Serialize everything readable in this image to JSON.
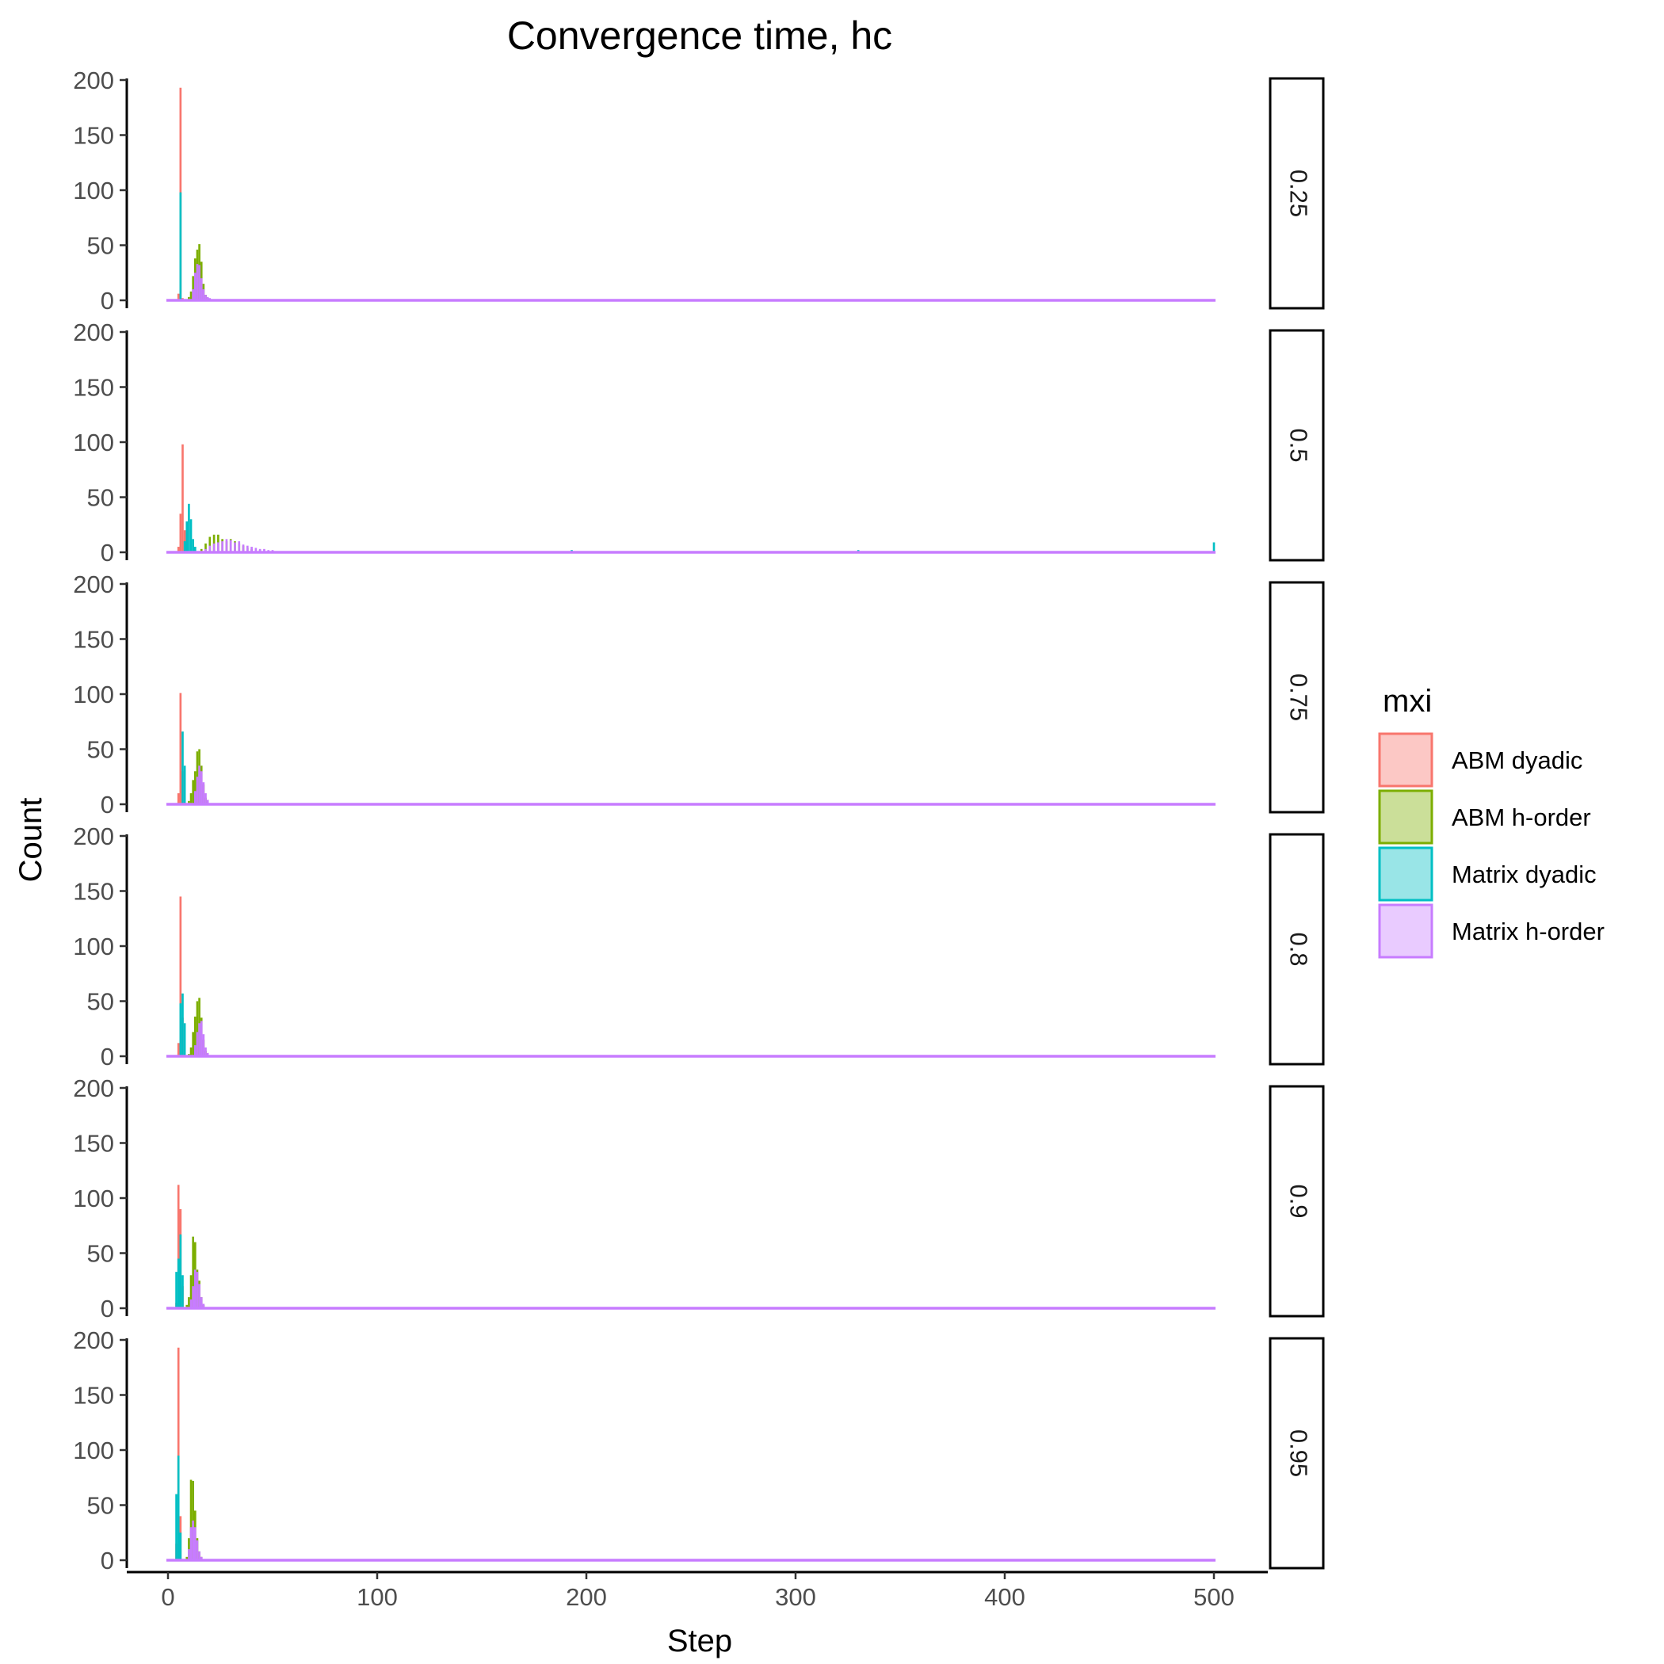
{
  "chart_data": {
    "type": "histogram",
    "title": "Convergence time, hc",
    "xlabel": "Step",
    "ylabel": "Count",
    "xlim": [
      0,
      500
    ],
    "ylim": [
      0,
      200
    ],
    "x_ticks": [
      "0",
      "100",
      "200",
      "300",
      "400",
      "500"
    ],
    "y_ticks": [
      "0",
      "50",
      "100",
      "150",
      "200"
    ],
    "grid": false,
    "legend": {
      "title": "mxi",
      "position": "right",
      "entries": [
        {
          "name": "ABM dyadic",
          "color": "#F8766D"
        },
        {
          "name": "ABM h-order",
          "color": "#7CAE00"
        },
        {
          "name": "Matrix dyadic",
          "color": "#00BFC4"
        },
        {
          "name": "Matrix h-order",
          "color": "#C77CFF"
        }
      ]
    },
    "facets": [
      {
        "label": "0.25",
        "series": [
          {
            "name": "ABM dyadic",
            "bins": [
              [
                5,
                6
              ],
              [
                6,
                193
              ],
              [
                7,
                2
              ]
            ]
          },
          {
            "name": "Matrix dyadic",
            "bins": [
              [
                6,
                98
              ]
            ]
          },
          {
            "name": "ABM h-order",
            "bins": [
              [
                10,
                3
              ],
              [
                11,
                8
              ],
              [
                12,
                22
              ],
              [
                13,
                38
              ],
              [
                14,
                46
              ],
              [
                15,
                51
              ],
              [
                16,
                35
              ],
              [
                17,
                15
              ],
              [
                18,
                5
              ],
              [
                19,
                2
              ]
            ]
          },
          {
            "name": "Matrix h-order",
            "bins": [
              [
                12,
                10
              ],
              [
                13,
                25
              ],
              [
                14,
                33
              ],
              [
                15,
                32
              ],
              [
                16,
                20
              ],
              [
                17,
                10
              ],
              [
                18,
                5
              ],
              [
                19,
                3
              ],
              [
                20,
                2
              ]
            ]
          }
        ]
      },
      {
        "label": "0.5",
        "series": [
          {
            "name": "ABM dyadic",
            "bins": [
              [
                5,
                5
              ],
              [
                6,
                35
              ],
              [
                7,
                98
              ],
              [
                8,
                20
              ],
              [
                9,
                5
              ]
            ]
          },
          {
            "name": "Matrix dyadic",
            "bins": [
              [
                8,
                10
              ],
              [
                9,
                28
              ],
              [
                10,
                44
              ],
              [
                11,
                30
              ],
              [
                12,
                12
              ],
              [
                13,
                5
              ],
              [
                193,
                2
              ],
              [
                330,
                2
              ],
              [
                500,
                9
              ]
            ]
          },
          {
            "name": "ABM h-order",
            "bins": [
              [
                16,
                3
              ],
              [
                18,
                8
              ],
              [
                20,
                14
              ],
              [
                22,
                16
              ],
              [
                24,
                16
              ],
              [
                26,
                12
              ],
              [
                28,
                10
              ],
              [
                30,
                12
              ],
              [
                32,
                10
              ],
              [
                34,
                8
              ],
              [
                36,
                6
              ],
              [
                38,
                4
              ],
              [
                40,
                3
              ],
              [
                44,
                2
              ],
              [
                48,
                1
              ]
            ]
          },
          {
            "name": "Matrix h-order",
            "bins": [
              [
                18,
                3
              ],
              [
                20,
                6
              ],
              [
                22,
                8
              ],
              [
                24,
                9
              ],
              [
                26,
                10
              ],
              [
                28,
                12
              ],
              [
                30,
                11
              ],
              [
                32,
                9
              ],
              [
                34,
                10
              ],
              [
                36,
                7
              ],
              [
                38,
                6
              ],
              [
                40,
                5
              ],
              [
                42,
                4
              ],
              [
                44,
                3
              ],
              [
                46,
                3
              ],
              [
                48,
                2
              ],
              [
                50,
                2
              ]
            ]
          }
        ]
      },
      {
        "label": "0.75",
        "series": [
          {
            "name": "ABM dyadic",
            "bins": [
              [
                5,
                10
              ],
              [
                6,
                101
              ],
              [
                7,
                30
              ]
            ]
          },
          {
            "name": "Matrix dyadic",
            "bins": [
              [
                7,
                66
              ],
              [
                8,
                35
              ]
            ]
          },
          {
            "name": "ABM h-order",
            "bins": [
              [
                10,
                3
              ],
              [
                11,
                10
              ],
              [
                12,
                22
              ],
              [
                13,
                30
              ],
              [
                14,
                48
              ],
              [
                15,
                50
              ],
              [
                16,
                35
              ],
              [
                17,
                18
              ],
              [
                18,
                6
              ],
              [
                19,
                2
              ]
            ]
          },
          {
            "name": "Matrix h-order",
            "bins": [
              [
                13,
                12
              ],
              [
                14,
                25
              ],
              [
                15,
                35
              ],
              [
                16,
                30
              ],
              [
                17,
                20
              ],
              [
                18,
                10
              ],
              [
                19,
                4
              ]
            ]
          }
        ]
      },
      {
        "label": "0.8",
        "series": [
          {
            "name": "ABM dyadic",
            "bins": [
              [
                5,
                12
              ],
              [
                6,
                145
              ],
              [
                7,
                35
              ]
            ]
          },
          {
            "name": "Matrix dyadic",
            "bins": [
              [
                6,
                48
              ],
              [
                7,
                57
              ],
              [
                8,
                30
              ]
            ]
          },
          {
            "name": "ABM h-order",
            "bins": [
              [
                10,
                2
              ],
              [
                11,
                8
              ],
              [
                12,
                22
              ],
              [
                13,
                36
              ],
              [
                14,
                50
              ],
              [
                15,
                53
              ],
              [
                16,
                35
              ],
              [
                17,
                15
              ],
              [
                18,
                5
              ]
            ]
          },
          {
            "name": "Matrix h-order",
            "bins": [
              [
                13,
                10
              ],
              [
                14,
                22
              ],
              [
                15,
                30
              ],
              [
                16,
                32
              ],
              [
                17,
                20
              ],
              [
                18,
                8
              ],
              [
                19,
                3
              ]
            ]
          }
        ]
      },
      {
        "label": "0.9",
        "series": [
          {
            "name": "ABM dyadic",
            "bins": [
              [
                4,
                5
              ],
              [
                5,
                112
              ],
              [
                6,
                90
              ],
              [
                7,
                20
              ]
            ]
          },
          {
            "name": "Matrix dyadic",
            "bins": [
              [
                4,
                33
              ],
              [
                5,
                45
              ],
              [
                6,
                67
              ],
              [
                7,
                30
              ]
            ]
          },
          {
            "name": "ABM h-order",
            "bins": [
              [
                9,
                3
              ],
              [
                10,
                10
              ],
              [
                11,
                30
              ],
              [
                12,
                65
              ],
              [
                13,
                60
              ],
              [
                14,
                35
              ],
              [
                15,
                25
              ],
              [
                16,
                10
              ],
              [
                17,
                3
              ]
            ]
          },
          {
            "name": "Matrix h-order",
            "bins": [
              [
                11,
                8
              ],
              [
                12,
                20
              ],
              [
                13,
                35
              ],
              [
                14,
                33
              ],
              [
                15,
                22
              ],
              [
                16,
                10
              ],
              [
                17,
                4
              ]
            ]
          }
        ]
      },
      {
        "label": "0.95",
        "series": [
          {
            "name": "ABM dyadic",
            "bins": [
              [
                4,
                15
              ],
              [
                5,
                193
              ],
              [
                6,
                40
              ]
            ]
          },
          {
            "name": "Matrix dyadic",
            "bins": [
              [
                4,
                60
              ],
              [
                5,
                95
              ],
              [
                6,
                25
              ]
            ]
          },
          {
            "name": "ABM h-order",
            "bins": [
              [
                9,
                3
              ],
              [
                10,
                20
              ],
              [
                11,
                73
              ],
              [
                12,
                72
              ],
              [
                13,
                45
              ],
              [
                14,
                20
              ],
              [
                15,
                8
              ],
              [
                16,
                3
              ]
            ]
          },
          {
            "name": "Matrix h-order",
            "bins": [
              [
                10,
                10
              ],
              [
                11,
                30
              ],
              [
                12,
                36
              ],
              [
                13,
                30
              ],
              [
                14,
                18
              ],
              [
                15,
                8
              ],
              [
                16,
                3
              ]
            ]
          }
        ]
      }
    ]
  }
}
